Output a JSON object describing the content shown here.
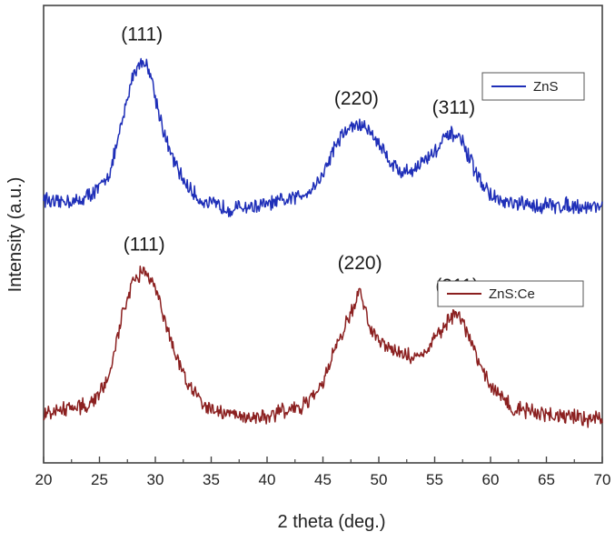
{
  "chart_data": {
    "type": "line",
    "xlabel": "2 theta  (deg.)",
    "ylabel": "Intensity (a.u.)",
    "xlim": [
      20,
      70
    ],
    "xticks": [
      "20",
      "25",
      "30",
      "35",
      "40",
      "45",
      "50",
      "55",
      "60",
      "65",
      "70"
    ],
    "ylim": [
      0,
      1
    ],
    "grid": false,
    "colors": {
      "ZnS": "#1f2fb8",
      "ZnS:Ce": "#8b2020"
    },
    "series": [
      {
        "name": "ZnS",
        "legend_position": "upper-right",
        "peaks": [
          {
            "label": "(111)",
            "x": 28.8,
            "y": 0.88
          },
          {
            "label": "(220)",
            "x": 48.0,
            "y": 0.74
          },
          {
            "label": "(311)",
            "x": 56.7,
            "y": 0.72
          }
        ],
        "points": [
          [
            20,
            0.58
          ],
          [
            21,
            0.565
          ],
          [
            22,
            0.575
          ],
          [
            23,
            0.57
          ],
          [
            24,
            0.585
          ],
          [
            25,
            0.6
          ],
          [
            26,
            0.64
          ],
          [
            27,
            0.74
          ],
          [
            28,
            0.85
          ],
          [
            28.8,
            0.88
          ],
          [
            29.5,
            0.86
          ],
          [
            30,
            0.8
          ],
          [
            31,
            0.7
          ],
          [
            32,
            0.64
          ],
          [
            33,
            0.6
          ],
          [
            34,
            0.575
          ],
          [
            35,
            0.565
          ],
          [
            36,
            0.56
          ],
          [
            37,
            0.555
          ],
          [
            38,
            0.56
          ],
          [
            39,
            0.56
          ],
          [
            40,
            0.565
          ],
          [
            41,
            0.57
          ],
          [
            42,
            0.575
          ],
          [
            43,
            0.585
          ],
          [
            44,
            0.6
          ],
          [
            45,
            0.63
          ],
          [
            46,
            0.69
          ],
          [
            47,
            0.725
          ],
          [
            48,
            0.74
          ],
          [
            49,
            0.73
          ],
          [
            50,
            0.7
          ],
          [
            51,
            0.66
          ],
          [
            52,
            0.635
          ],
          [
            53,
            0.64
          ],
          [
            54,
            0.66
          ],
          [
            55,
            0.68
          ],
          [
            56,
            0.71
          ],
          [
            56.7,
            0.72
          ],
          [
            57.5,
            0.7
          ],
          [
            58,
            0.67
          ],
          [
            59,
            0.62
          ],
          [
            60,
            0.585
          ],
          [
            61,
            0.57
          ],
          [
            62,
            0.565
          ],
          [
            63,
            0.565
          ],
          [
            64,
            0.56
          ],
          [
            65,
            0.565
          ],
          [
            66,
            0.56
          ],
          [
            67,
            0.565
          ],
          [
            68,
            0.56
          ],
          [
            69,
            0.56
          ],
          [
            70,
            0.565
          ]
        ]
      },
      {
        "name": "ZnS:Ce",
        "legend_position": "middle-right",
        "peaks": [
          {
            "label": "(111)",
            "x": 29.0,
            "y": 0.42
          },
          {
            "label": "(220)",
            "x": 48.3,
            "y": 0.38
          },
          {
            "label": "(311)",
            "x": 57.0,
            "y": 0.33
          }
        ],
        "points": [
          [
            20,
            0.11
          ],
          [
            21,
            0.11
          ],
          [
            22,
            0.12
          ],
          [
            23,
            0.12
          ],
          [
            24,
            0.13
          ],
          [
            25,
            0.15
          ],
          [
            26,
            0.2
          ],
          [
            27,
            0.32
          ],
          [
            28,
            0.4
          ],
          [
            29,
            0.42
          ],
          [
            30,
            0.39
          ],
          [
            31,
            0.3
          ],
          [
            32,
            0.22
          ],
          [
            33,
            0.17
          ],
          [
            34,
            0.14
          ],
          [
            35,
            0.12
          ],
          [
            36,
            0.11
          ],
          [
            37,
            0.105
          ],
          [
            38,
            0.1
          ],
          [
            39,
            0.1
          ],
          [
            40,
            0.105
          ],
          [
            41,
            0.11
          ],
          [
            42,
            0.115
          ],
          [
            43,
            0.12
          ],
          [
            44,
            0.14
          ],
          [
            45,
            0.18
          ],
          [
            46,
            0.24
          ],
          [
            47,
            0.3
          ],
          [
            47.8,
            0.34
          ],
          [
            48.3,
            0.38
          ],
          [
            49,
            0.31
          ],
          [
            50,
            0.27
          ],
          [
            51,
            0.25
          ],
          [
            52,
            0.24
          ],
          [
            53,
            0.23
          ],
          [
            54,
            0.24
          ],
          [
            55,
            0.27
          ],
          [
            56,
            0.3
          ],
          [
            57,
            0.33
          ],
          [
            58,
            0.28
          ],
          [
            59,
            0.22
          ],
          [
            60,
            0.17
          ],
          [
            61,
            0.14
          ],
          [
            62,
            0.12
          ],
          [
            63,
            0.115
          ],
          [
            64,
            0.11
          ],
          [
            65,
            0.105
          ],
          [
            66,
            0.1
          ],
          [
            67,
            0.1
          ],
          [
            68,
            0.1
          ],
          [
            69,
            0.095
          ],
          [
            70,
            0.095
          ]
        ]
      }
    ]
  }
}
